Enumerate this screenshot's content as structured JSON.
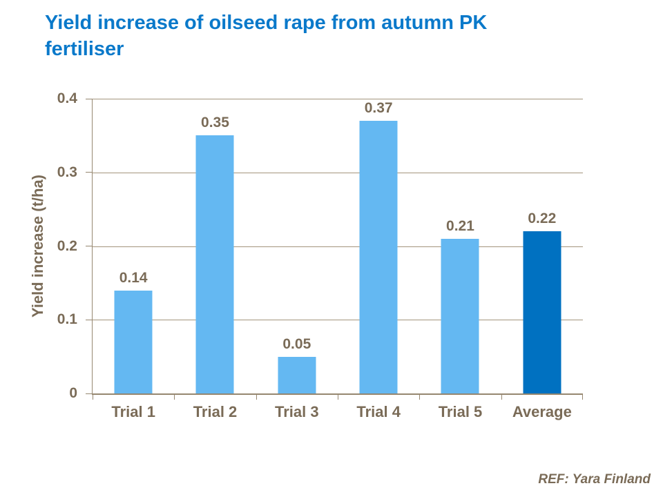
{
  "header": {
    "line1": "Yield increase of oilseed rape from autumn PK",
    "line2": "fertiliser"
  },
  "footer": {
    "reference": "REF: Yara Finland"
  },
  "colors": {
    "title": "#0a79ca",
    "text": "#7a6b57",
    "gridline": "#a3947c",
    "axis": "#95866f",
    "bar_default": "#64b8f2",
    "bar_highlight": "#0071c1"
  },
  "chart_data": {
    "type": "bar",
    "title": "Yield increase of oilseed rape from autumn PK fertiliser",
    "categories": [
      "Trial 1",
      "Trial 2",
      "Trial 3",
      "Trial 4",
      "Trial 5",
      "Average"
    ],
    "values": [
      0.14,
      0.35,
      0.05,
      0.37,
      0.21,
      0.22
    ],
    "data_labels": [
      "0.14",
      "0.35",
      "0.05",
      "0.37",
      "0.21",
      "0.22"
    ],
    "highlight_category": "Average",
    "xlabel": "",
    "ylabel": "Yield increase (t/ha)",
    "ylim": [
      0,
      0.4
    ],
    "yticks": [
      0,
      0.1,
      0.2,
      0.3,
      0.4
    ],
    "ytick_labels": [
      "0",
      "0.1",
      "0.2",
      "0.3",
      "0.4"
    ],
    "grid": true,
    "legend": false,
    "annotation": "REF: Yara Finland"
  }
}
